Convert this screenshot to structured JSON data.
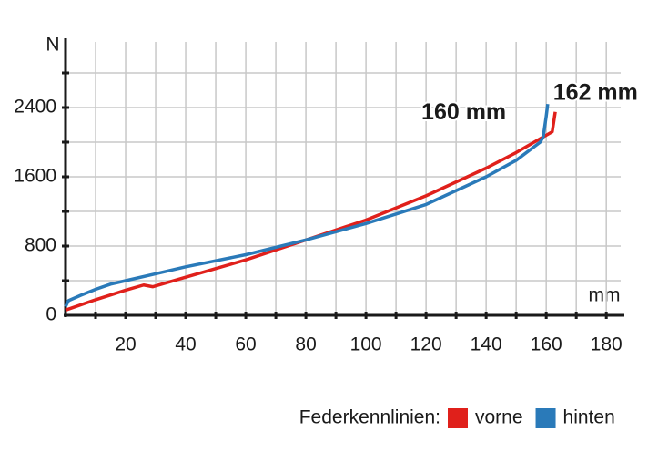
{
  "chart_data": {
    "type": "line",
    "y_label": "N",
    "x_label": "mm",
    "legend_title": "Federkennlinien:",
    "xlim": [
      0,
      186
    ],
    "ylim": [
      0,
      3200
    ],
    "xticks": [
      20,
      40,
      60,
      80,
      100,
      120,
      140,
      160,
      180
    ],
    "yticks": [
      0,
      800,
      1600,
      2400
    ],
    "xgrid": [
      10,
      20,
      30,
      40,
      50,
      60,
      70,
      80,
      90,
      100,
      110,
      120,
      130,
      140,
      150,
      160,
      170,
      180
    ],
    "ygrid": [
      400,
      800,
      1200,
      1600,
      2000,
      2400,
      2800
    ],
    "grid": true,
    "series": [
      {
        "name": "vorne",
        "color": "#e0201b",
        "x": [
          0,
          10,
          20,
          26,
          29,
          40,
          60,
          80,
          100,
          120,
          140,
          150,
          160,
          162,
          163
        ],
        "values": [
          60,
          180,
          290,
          350,
          330,
          440,
          640,
          870,
          1100,
          1380,
          1700,
          1880,
          2080,
          2120,
          2350
        ]
      },
      {
        "name": "hinten",
        "color": "#2a7ab9",
        "x": [
          0,
          1,
          5,
          10,
          15,
          20,
          30,
          40,
          60,
          80,
          100,
          120,
          140,
          150,
          158,
          159,
          160,
          160.5
        ],
        "values": [
          100,
          170,
          230,
          300,
          360,
          400,
          480,
          560,
          700,
          870,
          1060,
          1280,
          1600,
          1790,
          2000,
          2060,
          2300,
          2440
        ]
      }
    ],
    "annotations": [
      {
        "text": "160 mm",
        "x": 160,
        "y": 2300
      },
      {
        "text": "162 mm",
        "x": 162,
        "y": 2350
      }
    ]
  }
}
